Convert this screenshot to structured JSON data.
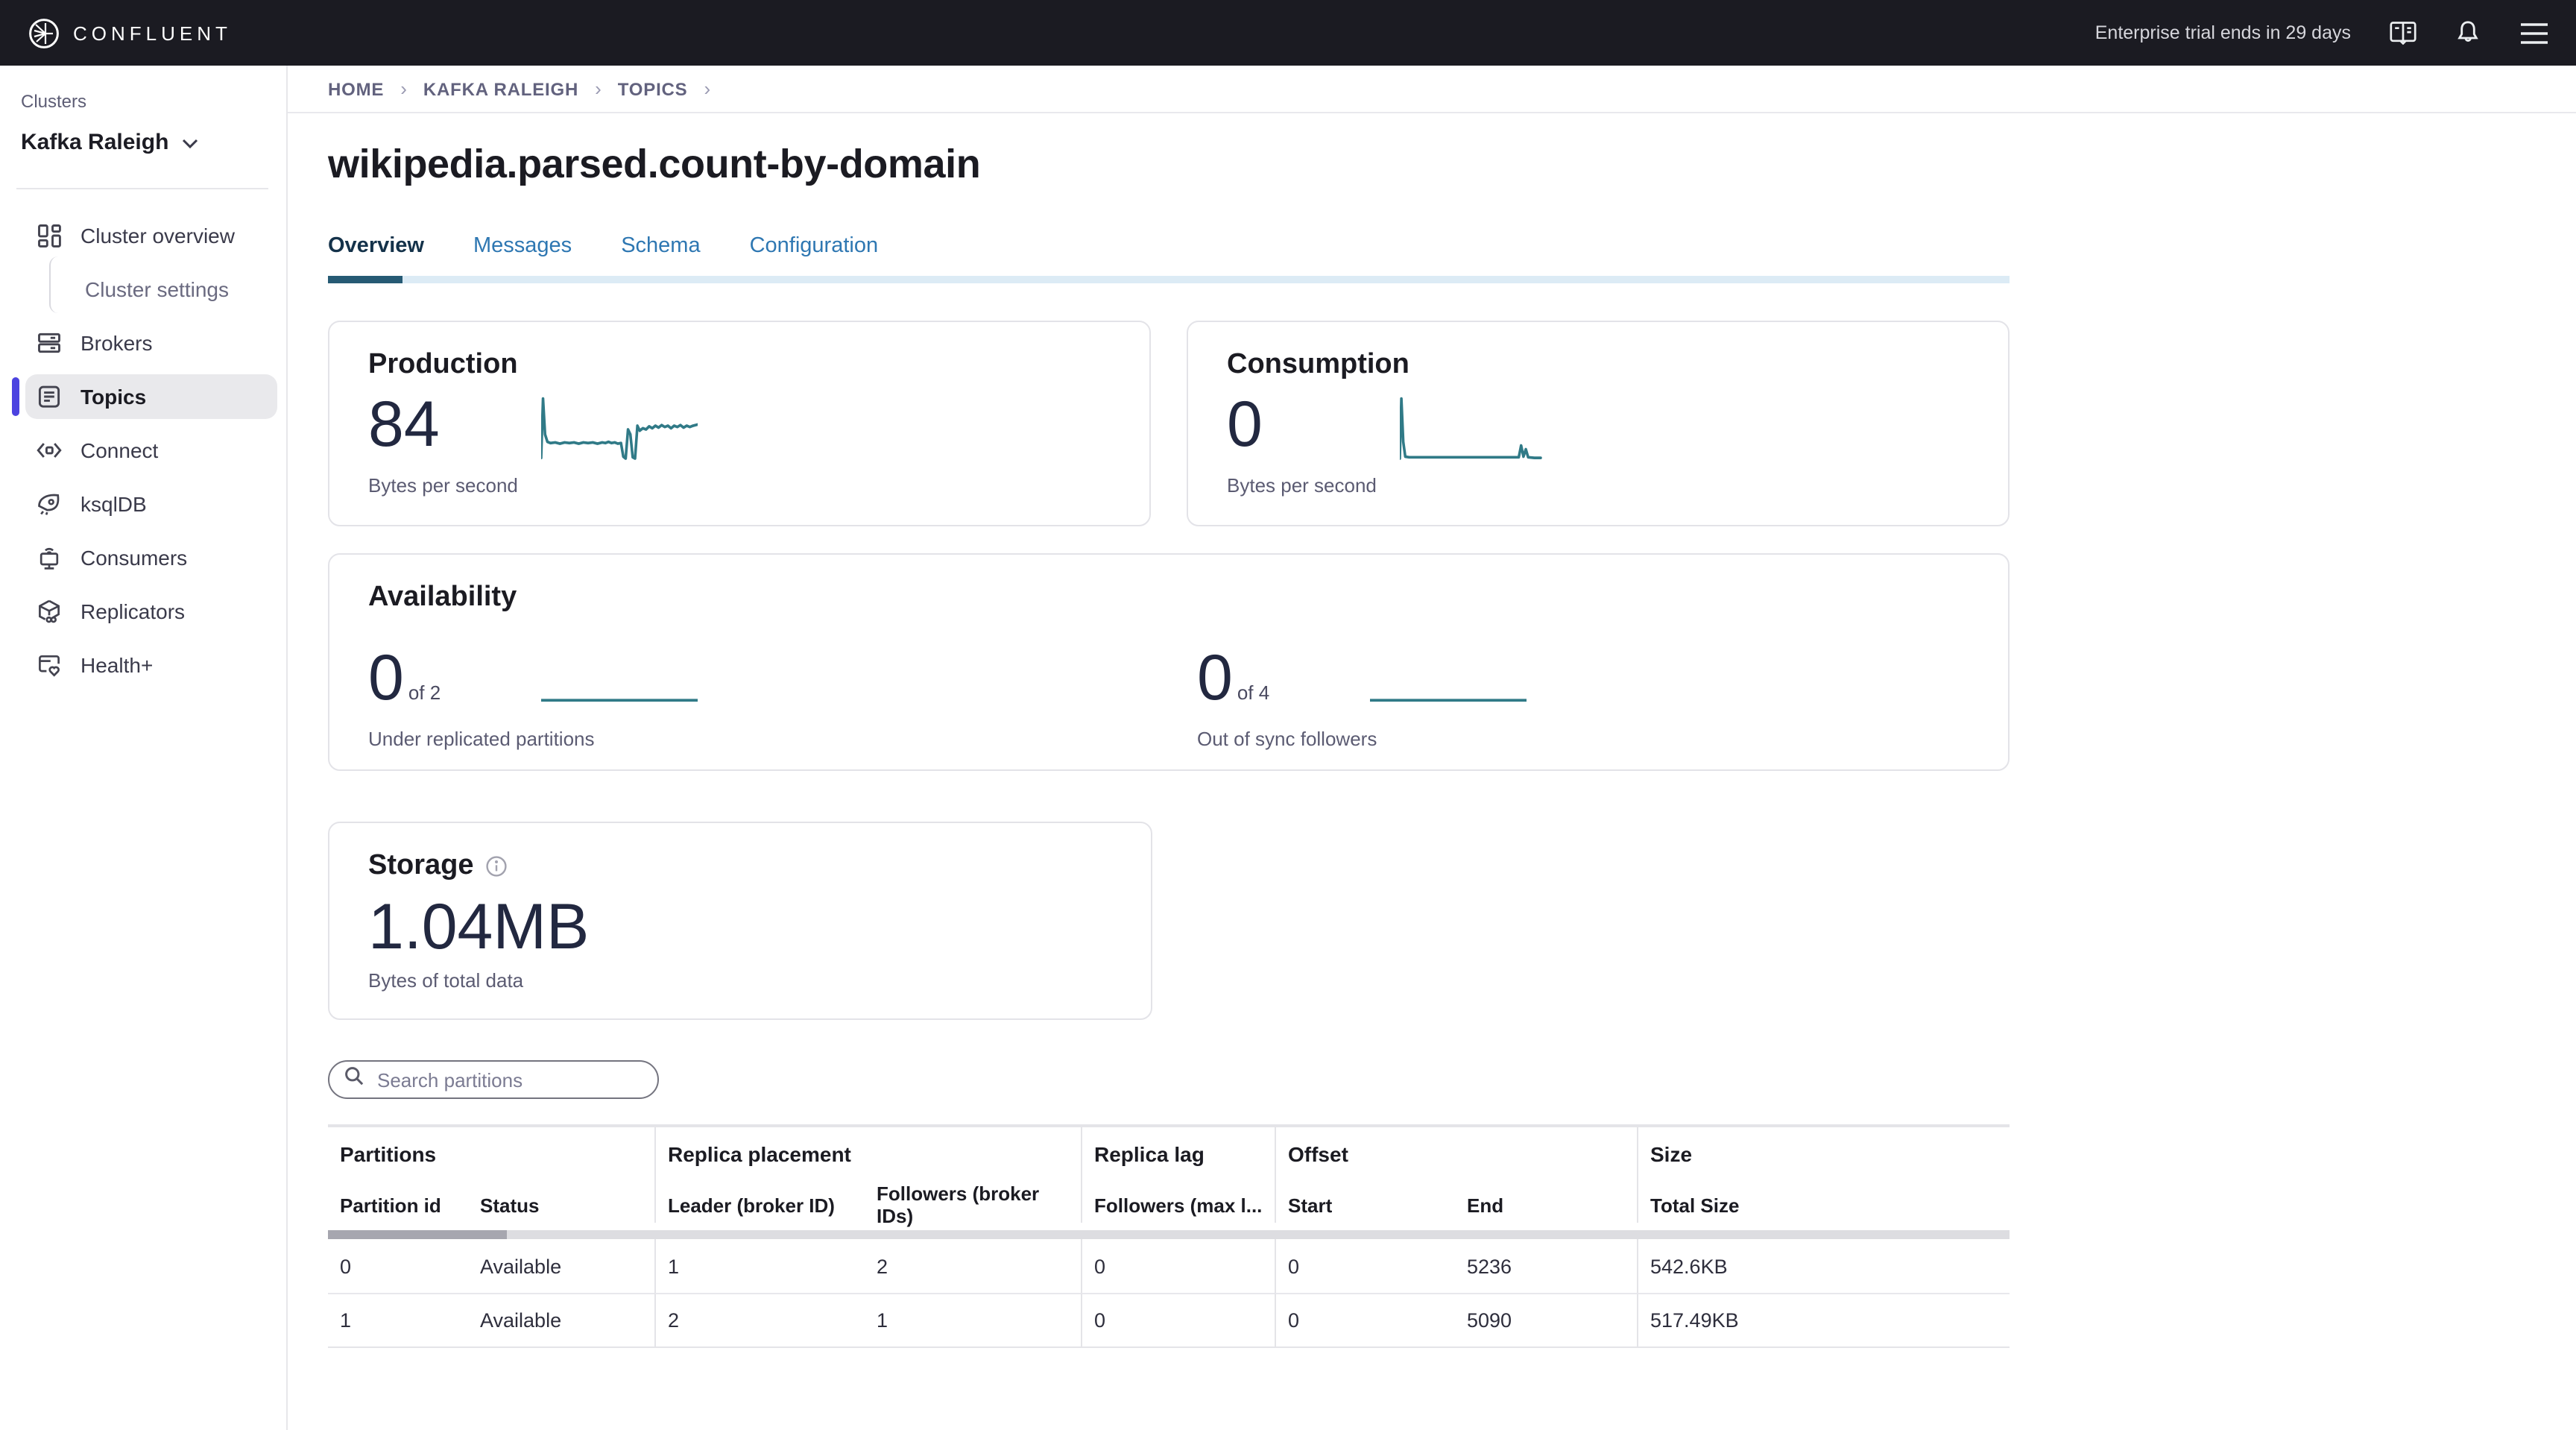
{
  "topbar": {
    "brand": "CONFLUENT",
    "trial_text": "Enterprise trial ends in 29 days",
    "icons": [
      "docs-book-icon",
      "notifications-bell-icon",
      "menu-icon"
    ]
  },
  "sidebar": {
    "section_label": "Clusters",
    "cluster_name": "Kafka Raleigh",
    "items": [
      {
        "label": "Cluster overview",
        "icon": "dashboard-icon",
        "active": false
      },
      {
        "label": "Cluster settings",
        "icon": null,
        "active": false,
        "child": true
      },
      {
        "label": "Brokers",
        "icon": "brokers-icon",
        "active": false
      },
      {
        "label": "Topics",
        "icon": "topics-icon",
        "active": true
      },
      {
        "label": "Connect",
        "icon": "connect-icon",
        "active": false
      },
      {
        "label": "ksqlDB",
        "icon": "ksqldb-rocket-icon",
        "active": false
      },
      {
        "label": "Consumers",
        "icon": "consumers-icon",
        "active": false
      },
      {
        "label": "Replicators",
        "icon": "replicators-icon",
        "active": false
      },
      {
        "label": "Health+",
        "icon": "health-icon",
        "active": false
      }
    ]
  },
  "breadcrumb": {
    "items": [
      "HOME",
      "KAFKA RALEIGH",
      "TOPICS"
    ]
  },
  "page": {
    "title": "wikipedia.parsed.count-by-domain"
  },
  "tabs": [
    {
      "label": "Overview",
      "active": true
    },
    {
      "label": "Messages",
      "active": false
    },
    {
      "label": "Schema",
      "active": false
    },
    {
      "label": "Configuration",
      "active": false
    }
  ],
  "cards": {
    "production": {
      "title": "Production",
      "value": "84",
      "caption": "Bytes per second",
      "spark": [
        [
          0,
          0.04
        ],
        [
          1.2,
          1
        ],
        [
          2.5,
          0.42
        ],
        [
          4,
          0.3
        ],
        [
          6,
          0.28
        ],
        [
          9,
          0.29
        ],
        [
          12,
          0.27
        ],
        [
          15,
          0.29
        ],
        [
          18,
          0.28
        ],
        [
          21,
          0.29
        ],
        [
          24,
          0.27
        ],
        [
          27,
          0.29
        ],
        [
          30,
          0.28
        ],
        [
          33,
          0.29
        ],
        [
          36,
          0.27
        ],
        [
          39,
          0.29
        ],
        [
          41,
          0.28
        ],
        [
          43,
          0.3
        ],
        [
          45,
          0.28
        ],
        [
          47,
          0.29
        ],
        [
          49,
          0.27
        ],
        [
          51,
          0.28
        ],
        [
          52.5,
          0.06
        ],
        [
          54,
          0.03
        ],
        [
          55.5,
          0.5
        ],
        [
          57,
          0.42
        ],
        [
          58.5,
          0.05
        ],
        [
          60,
          0.03
        ],
        [
          61.5,
          0.56
        ],
        [
          63,
          0.48
        ],
        [
          65,
          0.52
        ],
        [
          67,
          0.5
        ],
        [
          69,
          0.55
        ],
        [
          71,
          0.52
        ],
        [
          73,
          0.56
        ],
        [
          75,
          0.53
        ],
        [
          77,
          0.57
        ],
        [
          79,
          0.54
        ],
        [
          81,
          0.56
        ],
        [
          83,
          0.52
        ],
        [
          85,
          0.56
        ],
        [
          87,
          0.54
        ],
        [
          89,
          0.57
        ],
        [
          91,
          0.53
        ],
        [
          93,
          0.56
        ],
        [
          95,
          0.54
        ],
        [
          97,
          0.56
        ],
        [
          100,
          0.58
        ]
      ]
    },
    "consumption": {
      "title": "Consumption",
      "value": "0",
      "caption": "Bytes per second",
      "spark": [
        [
          0,
          0.03
        ],
        [
          1,
          1
        ],
        [
          2.2,
          0.3
        ],
        [
          3.5,
          0.06
        ],
        [
          6,
          0.05
        ],
        [
          10,
          0.05
        ],
        [
          15,
          0.05
        ],
        [
          20,
          0.05
        ],
        [
          25,
          0.05
        ],
        [
          30,
          0.05
        ],
        [
          35,
          0.05
        ],
        [
          40,
          0.05
        ],
        [
          45,
          0.05
        ],
        [
          50,
          0.05
        ],
        [
          55,
          0.05
        ],
        [
          60,
          0.05
        ],
        [
          65,
          0.05
        ],
        [
          70,
          0.05
        ],
        [
          74,
          0.05
        ],
        [
          76,
          0.05
        ],
        [
          77.5,
          0.24
        ],
        [
          79,
          0.06
        ],
        [
          80.5,
          0.18
        ],
        [
          82,
          0.05
        ],
        [
          86,
          0.04
        ],
        [
          90,
          0.04
        ]
      ]
    },
    "availability": {
      "title": "Availability",
      "metrics": [
        {
          "value": "0",
          "of": "of 2",
          "caption": "Under replicated partitions",
          "spark": [
            [
              0,
              0.22
            ],
            [
              100,
              0.22
            ]
          ]
        },
        {
          "value": "0",
          "of": "of 4",
          "caption": "Out of sync followers",
          "spark": [
            [
              0,
              0.22
            ],
            [
              100,
              0.22
            ]
          ]
        }
      ]
    },
    "storage": {
      "title": "Storage",
      "value": "1.04MB",
      "caption": "Bytes of total data"
    }
  },
  "search": {
    "placeholder": "Search partitions"
  },
  "table": {
    "groups": [
      {
        "label": "Partitions",
        "span": 2
      },
      {
        "label": "Replica placement",
        "span": 2
      },
      {
        "label": "Replica lag",
        "span": 1
      },
      {
        "label": "Offset",
        "span": 2
      },
      {
        "label": "Size",
        "span": 1
      }
    ],
    "columns": [
      "Partition id",
      "Status",
      "Leader (broker ID)",
      "Followers (broker IDs)",
      "Followers (max l...",
      "Start",
      "End",
      "Total Size"
    ],
    "rows": [
      [
        "0",
        "Available",
        "1",
        "2",
        "0",
        "0",
        "5236",
        "542.6KB"
      ],
      [
        "1",
        "Available",
        "2",
        "1",
        "0",
        "0",
        "5090",
        "517.49KB"
      ]
    ]
  },
  "colors": {
    "topbar_bg": "#1b1b22",
    "accent_indigo": "#4c43e0",
    "link_blue": "#2e77b2",
    "tab_active_underline": "#265a74",
    "spark_teal": "#307a87"
  }
}
